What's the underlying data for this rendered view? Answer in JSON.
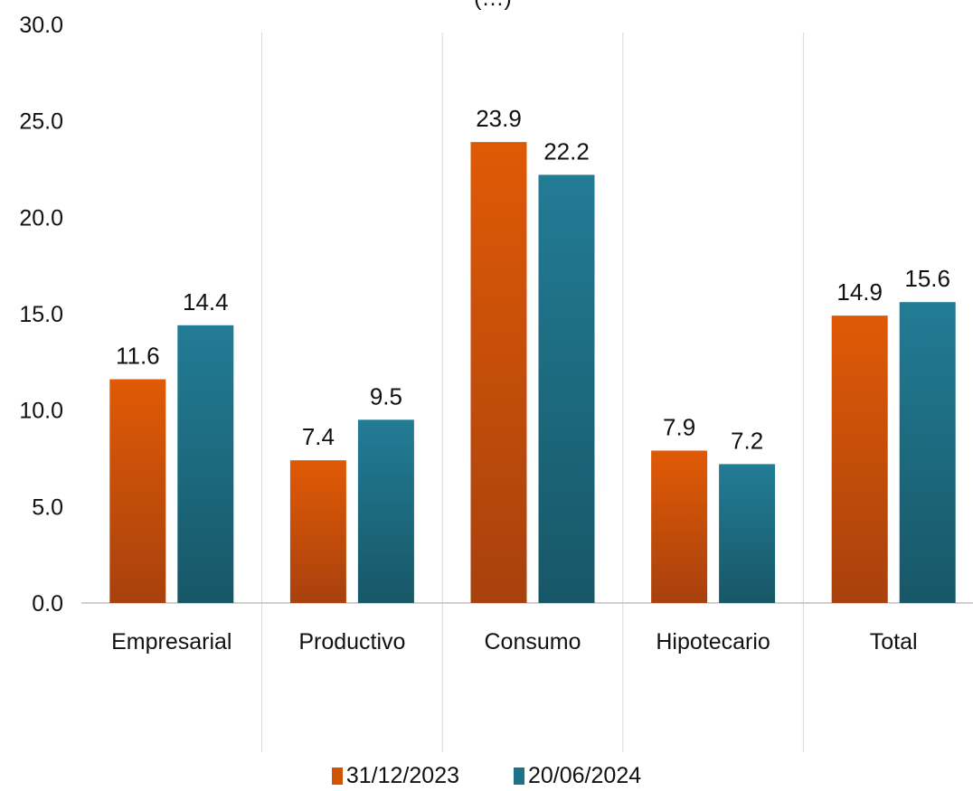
{
  "chart_data": {
    "type": "bar",
    "title": "(…)",
    "categories": [
      "Empresarial",
      "Productivo",
      "Consumo",
      "Hipotecario",
      "Total"
    ],
    "series": [
      {
        "name": "31/12/2023",
        "values": [
          11.6,
          7.4,
          23.9,
          7.9,
          14.9
        ],
        "color": "#D35400"
      },
      {
        "name": "20/06/2024",
        "values": [
          14.4,
          9.5,
          22.2,
          7.2,
          15.6
        ],
        "color": "#1F7188"
      }
    ],
    "y_ticks": [
      "0.0",
      "5.0",
      "10.0",
      "15.0",
      "20.0",
      "25.0",
      "30.0"
    ],
    "ylim": [
      0,
      30
    ],
    "data_labels": true,
    "grid": false,
    "category_separators": true,
    "legend_position": "bottom"
  }
}
